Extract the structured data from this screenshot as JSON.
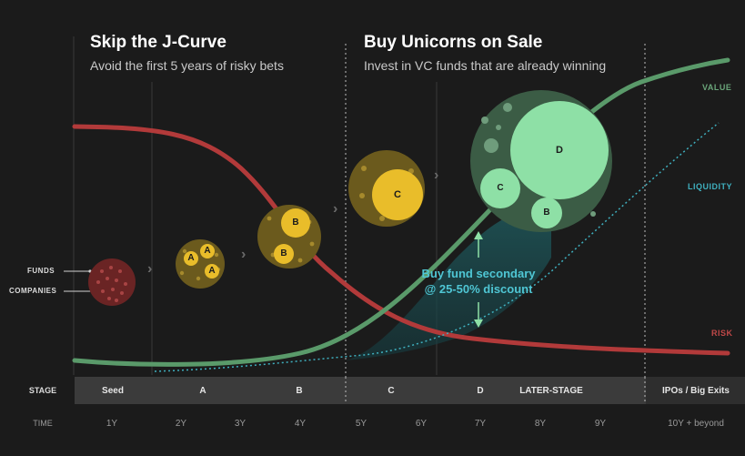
{
  "left_panel": {
    "title": "Skip the J-Curve",
    "subtitle": "Avoid the first 5 years of risky bets"
  },
  "right_panel": {
    "title": "Buy Unicorns on Sale",
    "subtitle": "Invest in VC funds that are already winning"
  },
  "callout": {
    "line1": "Buy fund secondary",
    "line2": "@ 25-50% discount"
  },
  "curve_labels": {
    "value": "VALUE",
    "liquidity": "LIQUIDITY",
    "risk": "RISK"
  },
  "legend": {
    "funds": "FUNDS",
    "companies": "COMPANIES"
  },
  "stage_row": {
    "header": "STAGE",
    "cells": [
      "Seed",
      "A",
      "B",
      "C",
      "D",
      "LATER-STAGE",
      "IPOs / Big Exits"
    ]
  },
  "time_row": {
    "header": "TIME",
    "ticks": [
      "1Y",
      "2Y",
      "3Y",
      "4Y",
      "5Y",
      "6Y",
      "7Y",
      "8Y",
      "9Y",
      "10Y + beyond"
    ]
  },
  "bubbles": {
    "a": "A",
    "b": "B",
    "c": "C",
    "d": "D"
  },
  "colors": {
    "background": "#1b1b1b",
    "value_curve": "#5a9a6a",
    "liquidity_curve": "#3fb0bf",
    "risk_curve": "#b23a3a",
    "seed_bubble": "#6a2424",
    "a_b_c_bubble": "#e9bd2a",
    "d_bubble": "#8ee0a6",
    "stage_band": "#3b3b3b"
  }
}
